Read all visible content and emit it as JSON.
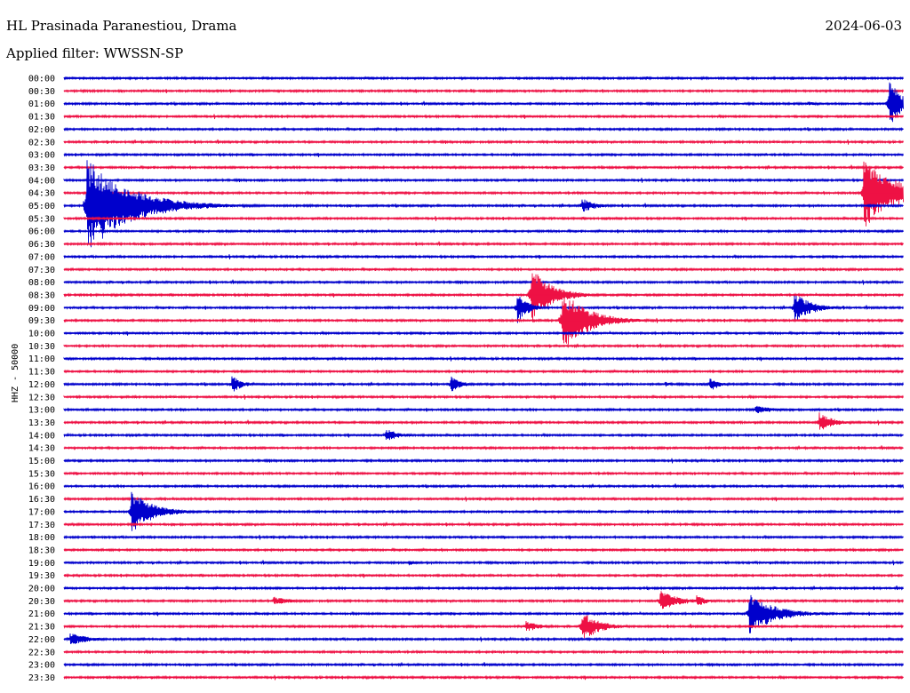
{
  "header": {
    "station": "HL Prasinada Paranestiou, Drama",
    "date": "2024-06-03",
    "filter": "Applied filter: WWSSN-SP",
    "channel": "HHZ - 50000"
  },
  "chart_data": {
    "type": "line",
    "subtype": "helicorder",
    "rows": [
      "00:00",
      "00:30",
      "01:00",
      "01:30",
      "02:00",
      "02:30",
      "03:00",
      "03:30",
      "04:00",
      "04:30",
      "05:00",
      "05:30",
      "06:00",
      "06:30",
      "07:00",
      "07:30",
      "08:00",
      "08:30",
      "09:00",
      "09:30",
      "10:00",
      "10:30",
      "11:00",
      "11:30",
      "12:00",
      "12:30",
      "13:00",
      "13:30",
      "14:00",
      "14:30",
      "15:00",
      "15:30",
      "16:00",
      "16:30",
      "17:00",
      "17:30",
      "18:00",
      "18:30",
      "19:00",
      "19:30",
      "20:00",
      "20:30",
      "21:00",
      "21:30",
      "22:00",
      "22:30",
      "23:00",
      "23:30"
    ],
    "ylabel": "HHZ - 50000",
    "colors": [
      "#0000cc",
      "#ee1144"
    ],
    "grid": false,
    "events": [
      {
        "row": "01:00",
        "minute": 29.5,
        "amp": 30,
        "dur": 0.7
      },
      {
        "row": "01:00",
        "minute": 26.6,
        "amp": 3,
        "dur": 0.5
      },
      {
        "row": "05:00",
        "minute": 0.8,
        "amp": 55,
        "dur": 2.5
      },
      {
        "row": "05:00",
        "minute": 18.5,
        "amp": 9,
        "dur": 0.8
      },
      {
        "row": "04:30",
        "minute": 28.6,
        "amp": 40,
        "dur": 2
      },
      {
        "row": "08:30",
        "minute": 16.7,
        "amp": 33,
        "dur": 1.2
      },
      {
        "row": "09:00",
        "minute": 16.2,
        "amp": 18,
        "dur": 0.6
      },
      {
        "row": "09:00",
        "minute": 26.1,
        "amp": 18,
        "dur": 1
      },
      {
        "row": "09:30",
        "minute": 17.8,
        "amp": 36,
        "dur": 1.5
      },
      {
        "row": "12:00",
        "minute": 6,
        "amp": 10,
        "dur": 0.6
      },
      {
        "row": "12:00",
        "minute": 13.8,
        "amp": 10,
        "dur": 0.6
      },
      {
        "row": "12:00",
        "minute": 23.1,
        "amp": 9,
        "dur": 0.5
      },
      {
        "row": "12:00",
        "minute": 21.5,
        "amp": 3,
        "dur": 0.4
      },
      {
        "row": "13:00",
        "minute": 24.7,
        "amp": 5,
        "dur": 1.2
      },
      {
        "row": "13:30",
        "minute": 27,
        "amp": 12,
        "dur": 0.8
      },
      {
        "row": "14:00",
        "minute": 11.5,
        "amp": 8,
        "dur": 0.8
      },
      {
        "row": "17:00",
        "minute": 2.4,
        "amp": 24,
        "dur": 1.3
      },
      {
        "row": "19:00",
        "minute": 12.3,
        "amp": 4,
        "dur": 0.5
      },
      {
        "row": "20:30",
        "minute": 7.5,
        "amp": 5,
        "dur": 1
      },
      {
        "row": "20:30",
        "minute": 21.3,
        "amp": 13,
        "dur": 1
      },
      {
        "row": "20:30",
        "minute": 22.6,
        "amp": 7,
        "dur": 0.6
      },
      {
        "row": "21:00",
        "minute": 24.5,
        "amp": 24,
        "dur": 1.5
      },
      {
        "row": "21:30",
        "minute": 16.5,
        "amp": 7,
        "dur": 0.8
      },
      {
        "row": "21:30",
        "minute": 18.5,
        "amp": 18,
        "dur": 1
      },
      {
        "row": "22:00",
        "minute": 0.2,
        "amp": 8,
        "dur": 1
      }
    ]
  }
}
